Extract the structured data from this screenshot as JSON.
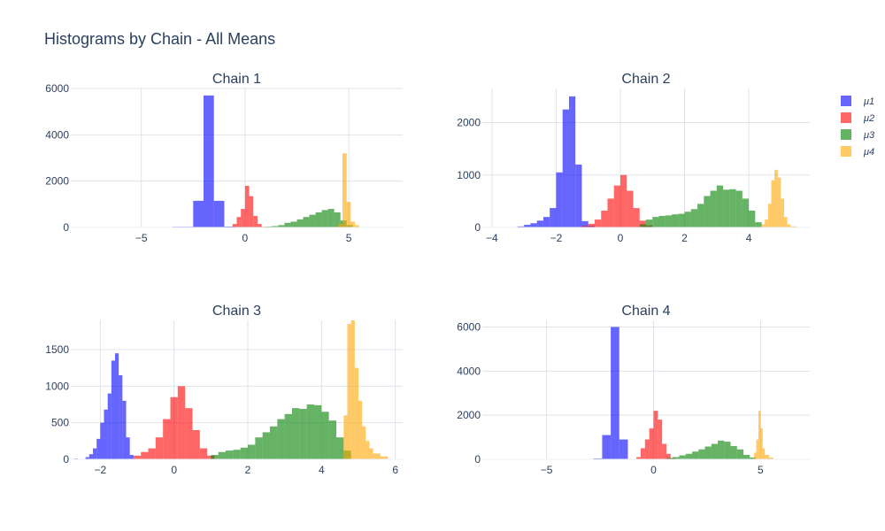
{
  "page": {
    "title": "Histograms by Chain - All Means"
  },
  "legend": {
    "items": [
      {
        "name": "μ1",
        "color": "#0000ff"
      },
      {
        "name": "μ2",
        "color": "#ff0000"
      },
      {
        "name": "μ3",
        "color": "#008000"
      },
      {
        "name": "μ4",
        "color": "#ffa500"
      }
    ]
  },
  "chart_data": [
    {
      "type": "bar",
      "title": "Chain 1",
      "xlim": [
        -8.4,
        7.6
      ],
      "ylim": [
        0,
        6000
      ],
      "xticks": [
        -5,
        0,
        5
      ],
      "xtick_labels": [
        "−5",
        "0",
        "5"
      ],
      "yticks": [
        0,
        2000,
        4000,
        6000
      ],
      "ytick_labels": [
        "0",
        "2000",
        "4000",
        "6000"
      ],
      "series": [
        {
          "name": "μ1",
          "bins": [
            [
              -8.0,
              -7.5,
              2
            ],
            [
              -3.5,
              -2.5,
              30
            ],
            [
              -2.5,
              -2.0,
              1150
            ],
            [
              -2.0,
              -1.5,
              5700
            ],
            [
              -1.5,
              -1.0,
              1150
            ],
            [
              -1.0,
              -0.5,
              40
            ]
          ]
        },
        {
          "name": "μ2",
          "bins": [
            [
              -0.8,
              -0.6,
              20
            ],
            [
              -0.6,
              -0.4,
              150
            ],
            [
              -0.4,
              -0.2,
              450
            ],
            [
              -0.2,
              0.0,
              800
            ],
            [
              0.0,
              0.2,
              1800
            ],
            [
              0.2,
              0.4,
              1350
            ],
            [
              0.4,
              0.6,
              500
            ],
            [
              0.6,
              0.8,
              150
            ],
            [
              0.8,
              1.0,
              30
            ]
          ]
        },
        {
          "name": "μ3",
          "bins": [
            [
              1.0,
              1.3,
              40
            ],
            [
              1.3,
              1.6,
              60
            ],
            [
              1.6,
              1.9,
              100
            ],
            [
              1.9,
              2.2,
              200
            ],
            [
              2.2,
              2.5,
              250
            ],
            [
              2.5,
              2.8,
              350
            ],
            [
              2.8,
              3.1,
              450
            ],
            [
              3.1,
              3.4,
              550
            ],
            [
              3.4,
              3.7,
              650
            ],
            [
              3.7,
              4.0,
              750
            ],
            [
              4.0,
              4.3,
              800
            ],
            [
              4.3,
              4.6,
              650
            ],
            [
              4.6,
              4.9,
              300
            ],
            [
              4.9,
              5.2,
              100
            ]
          ]
        },
        {
          "name": "μ4",
          "bins": [
            [
              4.3,
              4.5,
              30
            ],
            [
              4.5,
              4.7,
              150
            ],
            [
              4.7,
              4.9,
              3200
            ],
            [
              4.9,
              5.1,
              1100
            ],
            [
              5.1,
              5.3,
              250
            ],
            [
              5.3,
              5.5,
              100
            ],
            [
              5.5,
              6.5,
              20
            ]
          ]
        }
      ]
    },
    {
      "type": "bar",
      "title": "Chain 2",
      "xlim": [
        -4.3,
        5.9
      ],
      "ylim": [
        0,
        2650
      ],
      "xticks": [
        -4,
        -2,
        0,
        2,
        4
      ],
      "xtick_labels": [
        "−4",
        "−2",
        "0",
        "2",
        "4"
      ],
      "yticks": [
        0,
        1000,
        2000
      ],
      "ytick_labels": [
        "0",
        "1000",
        "2000"
      ],
      "series": [
        {
          "name": "μ1",
          "bins": [
            [
              -3.2,
              -3.0,
              20
            ],
            [
              -3.0,
              -2.8,
              50
            ],
            [
              -2.8,
              -2.6,
              80
            ],
            [
              -2.6,
              -2.4,
              130
            ],
            [
              -2.4,
              -2.2,
              200
            ],
            [
              -2.2,
              -2.0,
              370
            ],
            [
              -2.0,
              -1.8,
              1050
            ],
            [
              -1.8,
              -1.6,
              2250
            ],
            [
              -1.6,
              -1.4,
              2500
            ],
            [
              -1.4,
              -1.2,
              1200
            ],
            [
              -1.2,
              -1.0,
              120
            ],
            [
              -1.0,
              -0.8,
              30
            ]
          ]
        },
        {
          "name": "μ2",
          "bins": [
            [
              -1.2,
              -1.0,
              30
            ],
            [
              -1.0,
              -0.8,
              70
            ],
            [
              -0.8,
              -0.6,
              150
            ],
            [
              -0.6,
              -0.4,
              320
            ],
            [
              -0.4,
              -0.2,
              550
            ],
            [
              -0.2,
              0.0,
              800
            ],
            [
              0.0,
              0.2,
              1000
            ],
            [
              0.2,
              0.4,
              700
            ],
            [
              0.4,
              0.6,
              370
            ],
            [
              0.6,
              0.8,
              130
            ],
            [
              0.8,
              1.0,
              40
            ]
          ]
        },
        {
          "name": "μ3",
          "bins": [
            [
              0.6,
              0.8,
              60
            ],
            [
              0.8,
              1.0,
              150
            ],
            [
              1.0,
              1.2,
              200
            ],
            [
              1.2,
              1.4,
              220
            ],
            [
              1.4,
              1.6,
              230
            ],
            [
              1.6,
              1.8,
              250
            ],
            [
              1.8,
              2.0,
              260
            ],
            [
              2.0,
              2.2,
              300
            ],
            [
              2.2,
              2.4,
              350
            ],
            [
              2.4,
              2.6,
              450
            ],
            [
              2.6,
              2.8,
              600
            ],
            [
              2.8,
              3.0,
              700
            ],
            [
              3.0,
              3.2,
              800
            ],
            [
              3.2,
              3.4,
              720
            ],
            [
              3.4,
              3.6,
              730
            ],
            [
              3.6,
              3.8,
              700
            ],
            [
              3.8,
              4.0,
              550
            ],
            [
              4.0,
              4.2,
              320
            ],
            [
              4.2,
              4.4,
              100
            ]
          ]
        },
        {
          "name": "μ4",
          "bins": [
            [
              4.4,
              4.5,
              60
            ],
            [
              4.5,
              4.6,
              150
            ],
            [
              4.6,
              4.7,
              450
            ],
            [
              4.7,
              4.8,
              900
            ],
            [
              4.8,
              4.9,
              1100
            ],
            [
              4.9,
              5.0,
              950
            ],
            [
              5.0,
              5.1,
              550
            ],
            [
              5.1,
              5.2,
              200
            ],
            [
              5.2,
              5.3,
              60
            ],
            [
              5.3,
              5.5,
              20
            ]
          ]
        }
      ]
    },
    {
      "type": "bar",
      "title": "Chain 3",
      "xlim": [
        -2.8,
        6.2
      ],
      "ylim": [
        0,
        1900
      ],
      "xticks": [
        -2,
        0,
        2,
        4,
        6
      ],
      "xtick_labels": [
        "−2",
        "0",
        "2",
        "4",
        "6"
      ],
      "yticks": [
        0,
        500,
        1000,
        1500
      ],
      "ytick_labels": [
        "0",
        "500",
        "1000",
        "1500"
      ],
      "series": [
        {
          "name": "μ1",
          "bins": [
            [
              -2.7,
              -2.6,
              10
            ],
            [
              -2.4,
              -2.3,
              30
            ],
            [
              -2.3,
              -2.2,
              70
            ],
            [
              -2.2,
              -2.1,
              150
            ],
            [
              -2.1,
              -2.0,
              280
            ],
            [
              -2.0,
              -1.9,
              500
            ],
            [
              -1.9,
              -1.8,
              680
            ],
            [
              -1.8,
              -1.7,
              900
            ],
            [
              -1.7,
              -1.6,
              1350
            ],
            [
              -1.6,
              -1.5,
              1450
            ],
            [
              -1.5,
              -1.4,
              1150
            ],
            [
              -1.4,
              -1.3,
              800
            ],
            [
              -1.3,
              -1.2,
              300
            ],
            [
              -1.2,
              -1.1,
              60
            ]
          ]
        },
        {
          "name": "μ2",
          "bins": [
            [
              -1.1,
              -0.9,
              50
            ],
            [
              -0.9,
              -0.7,
              100
            ],
            [
              -0.7,
              -0.5,
              150
            ],
            [
              -0.5,
              -0.3,
              300
            ],
            [
              -0.3,
              -0.1,
              550
            ],
            [
              -0.1,
              0.1,
              850
            ],
            [
              0.1,
              0.3,
              1000
            ],
            [
              0.3,
              0.5,
              700
            ],
            [
              0.5,
              0.7,
              400
            ],
            [
              0.7,
              0.9,
              150
            ],
            [
              0.9,
              1.1,
              50
            ]
          ]
        },
        {
          "name": "μ3",
          "bins": [
            [
              1.0,
              1.2,
              60
            ],
            [
              1.2,
              1.4,
              100
            ],
            [
              1.4,
              1.6,
              120
            ],
            [
              1.6,
              1.8,
              130
            ],
            [
              1.8,
              2.0,
              160
            ],
            [
              2.0,
              2.2,
              200
            ],
            [
              2.2,
              2.4,
              300
            ],
            [
              2.4,
              2.6,
              370
            ],
            [
              2.6,
              2.8,
              450
            ],
            [
              2.8,
              3.0,
              550
            ],
            [
              3.0,
              3.2,
              620
            ],
            [
              3.2,
              3.4,
              700
            ],
            [
              3.4,
              3.6,
              690
            ],
            [
              3.6,
              3.8,
              750
            ],
            [
              3.8,
              4.0,
              740
            ],
            [
              4.0,
              4.2,
              650
            ],
            [
              4.2,
              4.4,
              530
            ],
            [
              4.4,
              4.6,
              300
            ],
            [
              4.6,
              4.8,
              120
            ]
          ]
        },
        {
          "name": "μ4",
          "bins": [
            [
              4.6,
              4.7,
              600
            ],
            [
              4.7,
              4.8,
              1850
            ],
            [
              4.8,
              4.9,
              1900
            ],
            [
              4.9,
              5.0,
              1250
            ],
            [
              5.0,
              5.1,
              800
            ],
            [
              5.1,
              5.2,
              450
            ],
            [
              5.2,
              5.3,
              250
            ],
            [
              5.3,
              5.4,
              150
            ],
            [
              5.4,
              5.6,
              80
            ],
            [
              5.6,
              5.8,
              40
            ]
          ]
        }
      ]
    },
    {
      "type": "bar",
      "title": "Chain 4",
      "xlim": [
        -8.0,
        7.3
      ],
      "ylim": [
        0,
        6300
      ],
      "xticks": [
        -5,
        0,
        5
      ],
      "xtick_labels": [
        "−5",
        "0",
        "5"
      ],
      "yticks": [
        0,
        2000,
        4000,
        6000
      ],
      "ytick_labels": [
        "0",
        "2000",
        "4000",
        "6000"
      ],
      "series": [
        {
          "name": "μ1",
          "bins": [
            [
              -2.8,
              -2.4,
              40
            ],
            [
              -2.4,
              -2.0,
              1100
            ],
            [
              -2.0,
              -1.6,
              6000
            ],
            [
              -1.6,
              -1.2,
              900
            ]
          ]
        },
        {
          "name": "μ2",
          "bins": [
            [
              -0.8,
              -0.6,
              100
            ],
            [
              -0.6,
              -0.4,
              500
            ],
            [
              -0.4,
              -0.2,
              900
            ],
            [
              -0.2,
              0.0,
              1400
            ],
            [
              0.0,
              0.2,
              2200
            ],
            [
              0.2,
              0.4,
              1800
            ],
            [
              0.4,
              0.6,
              700
            ],
            [
              0.6,
              0.8,
              250
            ],
            [
              0.8,
              1.0,
              60
            ]
          ]
        },
        {
          "name": "μ3",
          "bins": [
            [
              0.6,
              0.9,
              60
            ],
            [
              0.9,
              1.2,
              100
            ],
            [
              1.2,
              1.5,
              180
            ],
            [
              1.5,
              1.8,
              250
            ],
            [
              1.8,
              2.1,
              350
            ],
            [
              2.1,
              2.4,
              450
            ],
            [
              2.4,
              2.7,
              580
            ],
            [
              2.7,
              3.0,
              700
            ],
            [
              3.0,
              3.3,
              850
            ],
            [
              3.3,
              3.6,
              800
            ],
            [
              3.6,
              3.9,
              600
            ],
            [
              3.9,
              4.2,
              450
            ],
            [
              4.2,
              4.5,
              200
            ],
            [
              4.5,
              4.8,
              80
            ]
          ]
        },
        {
          "name": "μ4",
          "bins": [
            [
              4.7,
              4.8,
              300
            ],
            [
              4.8,
              4.9,
              900
            ],
            [
              4.9,
              5.0,
              2200
            ],
            [
              5.0,
              5.1,
              1400
            ],
            [
              5.1,
              5.2,
              500
            ],
            [
              5.2,
              5.4,
              200
            ],
            [
              5.4,
              5.6,
              80
            ]
          ]
        }
      ]
    }
  ]
}
